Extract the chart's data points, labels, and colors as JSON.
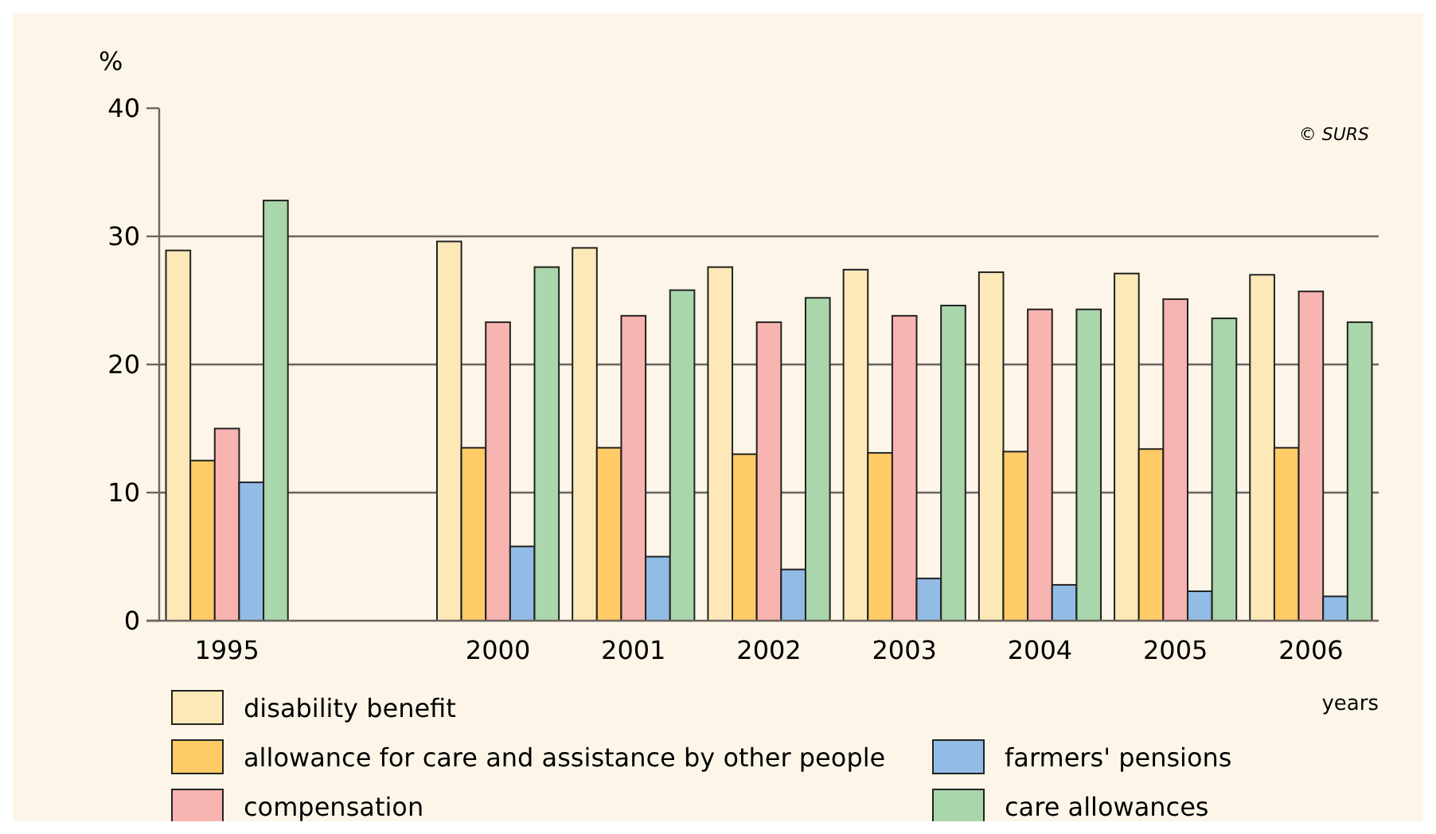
{
  "chart_data": {
    "type": "bar",
    "ylabel": "%",
    "xlabel": "years",
    "annotations": [
      "© SURS"
    ],
    "categories": [
      "1995",
      null,
      "2000",
      "2001",
      "2002",
      "2003",
      "2004",
      "2005",
      "2006"
    ],
    "series": [
      {
        "name": "disability benefit",
        "color": "#fde9b8",
        "values": [
          28.9,
          null,
          29.6,
          29.1,
          27.6,
          27.4,
          27.2,
          27.1,
          27.0
        ]
      },
      {
        "name": "allowance for care and assistance by other people",
        "color": "#fecb67",
        "values": [
          12.5,
          null,
          13.5,
          13.5,
          13.0,
          13.1,
          13.2,
          13.4,
          13.5
        ]
      },
      {
        "name": "compensation",
        "color": "#f8b4b0",
        "values": [
          15.0,
          null,
          23.3,
          23.8,
          23.3,
          23.8,
          24.3,
          25.1,
          25.7
        ]
      },
      {
        "name": "farmers' pensions",
        "color": "#92bce5",
        "values": [
          10.8,
          null,
          5.8,
          5.0,
          4.0,
          3.3,
          2.8,
          2.3,
          1.9
        ]
      },
      {
        "name": "care allowances",
        "color": "#a9d6ab",
        "values": [
          32.8,
          null,
          27.6,
          25.8,
          25.2,
          24.6,
          24.3,
          23.6,
          23.3
        ]
      }
    ],
    "ylim": [
      0,
      40
    ],
    "yticks": [
      0,
      10,
      20,
      30,
      40
    ],
    "grid": "y",
    "legend": "bottom"
  }
}
